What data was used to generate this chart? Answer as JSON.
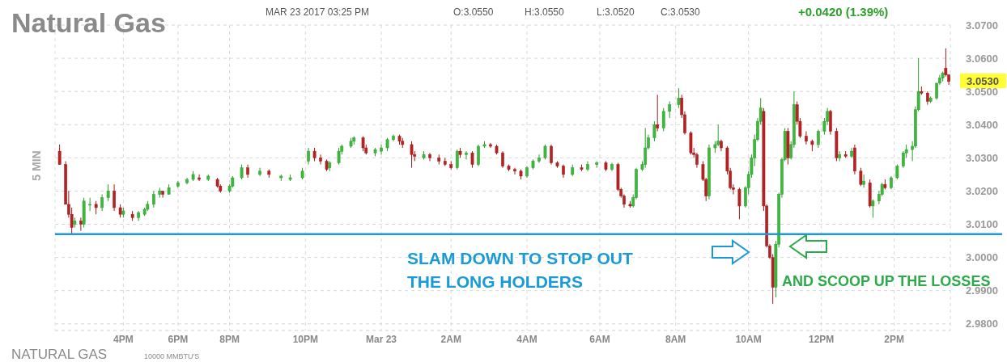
{
  "chart_data": {
    "type": "candlestick",
    "title": "Natural Gas",
    "subtitle": "MAR 23 2017 03:25 PM",
    "annotations": [
      "O:3.0550",
      "H:3.0550",
      "L:3.0520",
      "C:3.0530",
      "+0.0420 (1.39%)",
      "5 MIN",
      "NATURAL GAS",
      "10000 MMBTU'S",
      "SLAM DOWN TO STOP OUT THE LONG HOLDERS",
      "AND SCOOP UP THE LOSSES",
      "3.0530"
    ],
    "categories": [
      null,
      null,
      null,
      null,
      null,
      null,
      null,
      null,
      null,
      null,
      null,
      null,
      null,
      null,
      null,
      null,
      null,
      null,
      null,
      null,
      null,
      null,
      "4PM",
      null,
      null,
      null,
      null,
      null,
      null,
      null,
      null,
      null,
      null,
      null,
      null,
      null,
      null,
      null,
      null,
      null,
      "6PM",
      null,
      null,
      null,
      null,
      null,
      null,
      null,
      null,
      null,
      null,
      null,
      null,
      null,
      null,
      null,
      null,
      "8PM",
      null,
      null,
      null,
      null,
      null,
      null,
      null,
      null,
      null,
      null,
      null,
      null,
      null,
      null,
      null,
      null,
      null,
      null,
      null,
      null,
      null,
      null,
      null,
      null,
      "10PM",
      null,
      null,
      null,
      null,
      null,
      null,
      null,
      null,
      null,
      null,
      null,
      null,
      null,
      null,
      null,
      null,
      null,
      null,
      null,
      null,
      null,
      null,
      null,
      null,
      "Mar 23",
      null,
      null,
      null,
      null,
      null,
      null,
      null,
      null,
      null,
      null,
      null,
      null,
      null,
      null,
      null,
      null,
      null,
      null,
      null,
      null,
      null,
      null,
      "2AM",
      null,
      null,
      null,
      null,
      null,
      null,
      null,
      null,
      null,
      null,
      null,
      null,
      null,
      null,
      null,
      null,
      null,
      null,
      null,
      null,
      null,
      null,
      null,
      null,
      "4AM",
      null,
      null,
      null,
      null,
      null,
      null,
      null,
      null,
      null,
      null,
      null,
      null,
      null,
      null,
      null,
      null,
      null,
      null,
      null,
      null,
      null,
      null,
      null,
      "6AM",
      null,
      null,
      null,
      null,
      null,
      null,
      null,
      null,
      null,
      null,
      null,
      null,
      null,
      null,
      null,
      null,
      null,
      null,
      null,
      null,
      null,
      null,
      null,
      null,
      "8AM",
      null,
      null,
      null,
      null,
      null,
      null,
      null,
      null,
      null,
      null,
      null,
      null,
      null,
      null,
      null,
      null,
      null,
      null,
      null,
      null,
      null,
      null,
      null,
      "10AM",
      null,
      null,
      null,
      null,
      null,
      null,
      null,
      null,
      null,
      null,
      null,
      null,
      null,
      null,
      null,
      null,
      null,
      null,
      null,
      null,
      null,
      null,
      null,
      "12PM",
      null,
      null,
      null,
      null,
      null,
      null,
      null,
      null,
      null,
      null,
      null,
      null,
      null,
      null,
      null,
      null,
      null,
      null,
      null,
      null,
      null,
      null,
      null,
      "2PM",
      null,
      null,
      null,
      null,
      null,
      null,
      null,
      null,
      null,
      null,
      null,
      null,
      null,
      null,
      null,
      null,
      null,
      null
    ],
    "ohlc": [
      null,
      [
        3.032,
        3.034,
        3.028,
        3.028
      ],
      null,
      [
        3.028,
        3.029,
        3.016,
        3.016
      ],
      [
        3.016,
        3.02,
        3.012,
        3.013
      ],
      [
        3.013,
        3.015,
        3.007,
        3.009
      ],
      [
        3.01,
        3.012,
        3.009,
        3.011
      ],
      null,
      [
        3.011,
        3.012,
        3.008,
        3.01
      ],
      [
        3.01,
        3.018,
        3.009,
        3.017
      ],
      null,
      [
        3.016,
        3.018,
        3.014,
        3.016
      ],
      null,
      [
        3.016,
        3.017,
        3.013,
        3.015
      ],
      null,
      [
        3.015,
        3.019,
        3.014,
        3.018
      ],
      null,
      [
        3.018,
        3.022,
        3.017,
        3.02
      ],
      null,
      [
        3.02,
        3.022,
        3.014,
        3.015
      ],
      null,
      [
        3.015,
        3.016,
        3.012,
        3.013
      ],
      [
        3.013,
        3.015,
        3.012,
        3.014
      ],
      null,
      null,
      [
        3.013,
        3.014,
        3.011,
        3.012
      ],
      null,
      [
        3.012,
        3.014,
        3.011,
        3.0135
      ],
      null,
      [
        3.013,
        3.015,
        3.0125,
        3.0145
      ],
      [
        3.0145,
        3.017,
        3.014,
        3.016
      ],
      null,
      [
        3.016,
        3.02,
        3.015,
        3.019
      ],
      null,
      [
        3.019,
        3.021,
        3.018,
        3.02
      ],
      [
        3.02,
        3.02,
        3.018,
        3.019
      ],
      null,
      [
        3.019,
        3.022,
        3.019,
        3.021
      ],
      null,
      null,
      [
        3.0215,
        3.023,
        3.021,
        3.0225
      ],
      null,
      null,
      [
        3.0225,
        3.024,
        3.022,
        3.0235
      ],
      null,
      [
        3.0235,
        3.026,
        3.023,
        3.025
      ],
      null,
      [
        3.024,
        3.025,
        3.023,
        3.0235
      ],
      null,
      null,
      [
        3.0235,
        3.025,
        3.023,
        3.0245
      ],
      null,
      null,
      [
        3.0235,
        3.024,
        3.021,
        3.0215
      ],
      [
        3.0215,
        3.022,
        3.0195,
        3.02
      ],
      null,
      null,
      [
        3.02,
        3.022,
        3.0195,
        3.0215
      ],
      [
        3.0215,
        3.0245,
        3.021,
        3.024
      ],
      null,
      null,
      [
        3.024,
        3.028,
        3.0235,
        3.027
      ],
      null,
      [
        3.027,
        3.028,
        3.024,
        3.025
      ],
      null,
      null,
      null,
      [
        3.025,
        3.027,
        3.0245,
        3.026
      ],
      null,
      null,
      [
        3.026,
        3.0265,
        3.024,
        3.025
      ],
      null,
      null,
      null,
      [
        3.024,
        3.025,
        3.023,
        3.0245
      ],
      null,
      null,
      [
        3.0235,
        3.025,
        3.023,
        3.024
      ],
      null,
      null,
      null,
      [
        3.024,
        3.027,
        3.0235,
        3.026
      ],
      null,
      [
        3.029,
        3.033,
        3.028,
        3.032
      ],
      null,
      [
        3.032,
        3.033,
        3.029,
        3.03
      ],
      null,
      [
        3.03,
        3.031,
        3.028,
        3.029
      ],
      null,
      [
        3.029,
        3.0295,
        3.026,
        3.0265
      ],
      [
        3.027,
        3.029,
        3.026,
        3.0285
      ],
      null,
      null,
      [
        3.0285,
        3.033,
        3.028,
        3.032
      ],
      [
        3.032,
        3.034,
        3.031,
        3.0335
      ],
      null,
      null,
      [
        3.0335,
        3.036,
        3.033,
        3.035
      ],
      [
        3.035,
        3.0365,
        3.034,
        3.036
      ],
      null,
      null,
      [
        3.036,
        3.0365,
        3.032,
        3.033
      ],
      [
        3.033,
        3.034,
        3.031,
        3.0315
      ],
      null,
      null,
      [
        3.0315,
        3.033,
        3.0305,
        3.0325
      ],
      null,
      [
        3.032,
        3.034,
        3.031,
        3.033
      ],
      null,
      [
        3.033,
        3.036,
        3.032,
        3.0355
      ],
      null,
      [
        3.0355,
        3.037,
        3.035,
        3.0365
      ],
      null,
      [
        3.0365,
        3.037,
        3.034,
        3.035
      ],
      [
        3.035,
        3.036,
        3.033,
        3.034
      ],
      null,
      null,
      [
        3.034,
        3.035,
        3.027,
        3.031
      ],
      [
        3.031,
        3.032,
        3.029,
        3.0305
      ],
      null,
      null,
      [
        3.03,
        3.032,
        3.0295,
        3.031
      ],
      null,
      [
        3.031,
        3.0315,
        3.029,
        3.03
      ],
      null,
      null,
      [
        3.03,
        3.031,
        3.028,
        3.029
      ],
      null,
      [
        3.029,
        3.03,
        3.0275,
        3.028
      ],
      null,
      [
        3.028,
        3.029,
        3.0265,
        3.027
      ],
      null,
      [
        3.027,
        3.0325,
        3.0265,
        3.032
      ],
      [
        3.032,
        3.033,
        3.03,
        3.031
      ],
      null,
      [
        3.031,
        3.032,
        3.0295,
        3.0315
      ],
      null,
      [
        3.0315,
        3.032,
        3.027,
        3.028
      ],
      null,
      [
        3.028,
        3.034,
        3.0275,
        3.0335
      ],
      null,
      [
        3.0335,
        3.035,
        3.033,
        3.034
      ],
      null,
      [
        3.034,
        3.0345,
        3.033,
        3.0335
      ],
      null,
      [
        3.0335,
        3.034,
        3.031,
        3.0315
      ],
      null,
      [
        3.0315,
        3.032,
        3.027,
        3.0275
      ],
      null,
      [
        3.0275,
        3.028,
        3.026,
        3.0265
      ],
      null,
      [
        3.0265,
        3.027,
        3.025,
        3.026
      ],
      null,
      [
        3.026,
        3.0265,
        3.0235,
        3.0245
      ],
      null,
      [
        3.0245,
        3.0275,
        3.024,
        3.027
      ],
      null,
      [
        3.027,
        3.0295,
        3.0265,
        3.029
      ],
      null,
      [
        3.029,
        3.031,
        3.0285,
        3.03
      ],
      null,
      [
        3.03,
        3.034,
        3.0295,
        3.0335
      ],
      null,
      [
        3.0335,
        3.034,
        3.028,
        3.0285
      ],
      null,
      [
        3.0285,
        3.029,
        3.027,
        3.0275
      ],
      null,
      [
        3.0275,
        3.028,
        3.024,
        3.025
      ],
      null,
      null,
      [
        3.025,
        3.028,
        3.0245,
        3.027
      ],
      null,
      null,
      [
        3.027,
        3.028,
        3.026,
        3.0265
      ],
      null,
      [
        3.0265,
        3.029,
        3.026,
        3.028
      ],
      null,
      null,
      [
        3.028,
        3.029,
        3.027,
        3.0285
      ],
      null,
      null,
      [
        3.0285,
        3.029,
        3.026,
        3.0265
      ],
      null,
      [
        3.0265,
        3.0285,
        3.026,
        3.028
      ],
      null,
      [
        3.028,
        3.0285,
        3.02,
        3.0205
      ],
      [
        3.0205,
        3.021,
        3.018,
        3.0185
      ],
      [
        3.0185,
        3.019,
        3.015,
        3.016
      ],
      null,
      [
        3.016,
        3.017,
        3.015,
        3.0155
      ],
      [
        3.0155,
        3.019,
        3.015,
        3.018
      ],
      [
        3.018,
        3.027,
        3.0175,
        3.0265
      ],
      null,
      [
        3.0265,
        3.029,
        3.026,
        3.028
      ],
      [
        3.028,
        3.039,
        3.027,
        3.033
      ],
      [
        3.033,
        3.037,
        3.0325,
        3.036
      ],
      null,
      [
        3.036,
        3.041,
        3.035,
        3.04
      ],
      [
        3.04,
        3.049,
        3.038,
        3.039
      ],
      null,
      [
        3.039,
        3.045,
        3.038,
        3.044
      ],
      null,
      [
        3.044,
        3.047,
        3.042,
        3.046
      ],
      null,
      null,
      [
        3.046,
        3.051,
        3.045,
        3.048
      ],
      [
        3.048,
        3.049,
        3.042,
        3.043
      ],
      [
        3.043,
        3.044,
        3.037,
        3.0375
      ],
      null,
      [
        3.0375,
        3.038,
        3.031,
        3.0315
      ],
      [
        3.0315,
        3.033,
        3.03,
        3.031
      ],
      [
        3.031,
        3.0315,
        3.027,
        3.028
      ],
      null,
      [
        3.028,
        3.029,
        3.023,
        3.0235
      ],
      [
        3.0235,
        3.024,
        3.017,
        3.0185
      ],
      [
        3.0185,
        3.034,
        3.0175,
        3.033
      ],
      null,
      [
        3.033,
        3.035,
        3.0315,
        3.034
      ],
      [
        3.034,
        3.04,
        3.0335,
        3.035
      ],
      [
        3.035,
        3.0355,
        3.032,
        3.033
      ],
      null,
      [
        3.033,
        3.0335,
        3.025,
        3.026
      ],
      [
        3.026,
        3.027,
        3.0205,
        3.021
      ],
      [
        3.021,
        3.022,
        3.019,
        3.0205
      ],
      null,
      [
        3.0205,
        3.021,
        3.0115,
        3.0155
      ],
      null,
      [
        3.0155,
        3.0215,
        3.015,
        3.021
      ],
      [
        3.021,
        3.026,
        3.019,
        3.025
      ],
      [
        3.025,
        3.031,
        3.024,
        3.03
      ],
      [
        3.03,
        3.037,
        3.0275,
        3.0355
      ],
      [
        3.0355,
        3.042,
        3.035,
        3.041
      ],
      [
        3.041,
        3.048,
        3.04,
        3.045
      ],
      [
        3.044,
        3.045,
        3.014,
        3.0155
      ],
      [
        3.0155,
        3.016,
        3.003,
        3.0035
      ],
      [
        3.0035,
        3.004,
        2.9995,
        3
      ],
      [
        3,
        3.001,
        2.986,
        2.991
      ],
      [
        2.991,
        3.005,
        2.988,
        3.004
      ],
      [
        3.004,
        3.0195,
        3.003,
        3.019
      ],
      [
        3.019,
        3.03,
        3.018,
        3.0295
      ],
      [
        3.0295,
        3.039,
        3.029,
        3.038
      ],
      [
        3.038,
        3.039,
        3.028,
        3.03
      ],
      [
        3.03,
        3.035,
        3.0295,
        3.034
      ],
      [
        3.034,
        3.05,
        3.033,
        3.046
      ],
      [
        3.046,
        3.047,
        3.04,
        3.041
      ],
      [
        3.041,
        3.042,
        3.036,
        3.0365
      ],
      null,
      [
        3.0365,
        3.038,
        3.034,
        3.035
      ],
      null,
      [
        3.035,
        3.0355,
        3.032,
        3.034
      ],
      null,
      [
        3.034,
        3.0385,
        3.033,
        3.038
      ],
      null,
      [
        3.038,
        3.042,
        3.037,
        3.041
      ],
      [
        3.041,
        3.045,
        3.04,
        3.044
      ],
      [
        3.044,
        3.0445,
        3.037,
        3.038
      ],
      null,
      [
        3.038,
        3.039,
        3.029,
        3.03
      ],
      [
        3.03,
        3.032,
        3.029,
        3.031
      ],
      null,
      [
        3.031,
        3.032,
        3.03,
        3.0305
      ],
      null,
      [
        3.0305,
        3.033,
        3.03,
        3.032
      ],
      [
        3.033,
        3.034,
        3.025,
        3.026
      ],
      null,
      [
        3.026,
        3.027,
        3.0215,
        3.022
      ],
      [
        3.022,
        3.025,
        3.021,
        3.023
      ],
      null,
      [
        3.0225,
        3.0235,
        3.015,
        3.0155
      ],
      [
        3.0155,
        3.0175,
        3.012,
        3.017
      ],
      null,
      [
        3.017,
        3.02,
        3.016,
        3.019
      ],
      [
        3.019,
        3.0225,
        3.0185,
        3.022
      ],
      [
        3.022,
        3.0235,
        3.0205,
        3.021
      ],
      null,
      [
        3.021,
        3.0245,
        3.0205,
        3.024
      ],
      null,
      [
        3.024,
        3.028,
        3.0235,
        3.0275
      ],
      null,
      [
        3.0275,
        3.032,
        3.027,
        3.0315
      ],
      [
        3.0315,
        3.034,
        3.03,
        3.0325
      ],
      null,
      [
        3.0325,
        3.035,
        3.029,
        3.0335
      ],
      [
        3.0335,
        3.0455,
        3.033,
        3.0445
      ],
      [
        3.0445,
        3.06,
        3.044,
        3.05
      ],
      [
        3.05,
        3.0515,
        3.049,
        3.0495
      ],
      null,
      [
        3.0495,
        3.05,
        3.046,
        3.047
      ],
      [
        3.047,
        3.0485,
        3.0465,
        3.048
      ],
      null,
      [
        3.048,
        3.0525,
        3.0475,
        3.0525
      ],
      [
        3.0525,
        3.055,
        3.052,
        3.054
      ],
      [
        3.054,
        3.056,
        3.053,
        3.0555
      ],
      [
        3.057,
        3.063,
        3.0545,
        3.055
      ],
      [
        3.055,
        3.055,
        3.052,
        3.053
      ]
    ],
    "ylim": [
      2.978,
      3.07
    ],
    "yticks": [
      {
        "value": 2.98,
        "label": "2.9800"
      },
      {
        "value": 2.99,
        "label": "2.9900"
      },
      {
        "value": 3.0,
        "label": "3.0000"
      },
      {
        "value": 3.01,
        "label": "3.0100"
      },
      {
        "value": 3.02,
        "label": "3.0200"
      },
      {
        "value": 3.03,
        "label": "3.0300"
      },
      {
        "value": 3.04,
        "label": "3.0400"
      },
      {
        "value": 3.05,
        "label": "3.0500"
      },
      {
        "value": 3.06,
        "label": "3.0600"
      },
      {
        "value": 3.07,
        "label": "3.0700"
      }
    ],
    "grid": true,
    "ref_lines": [
      {
        "axis": "y",
        "value": 3.007,
        "color": "#1a9ad6"
      }
    ]
  }
}
